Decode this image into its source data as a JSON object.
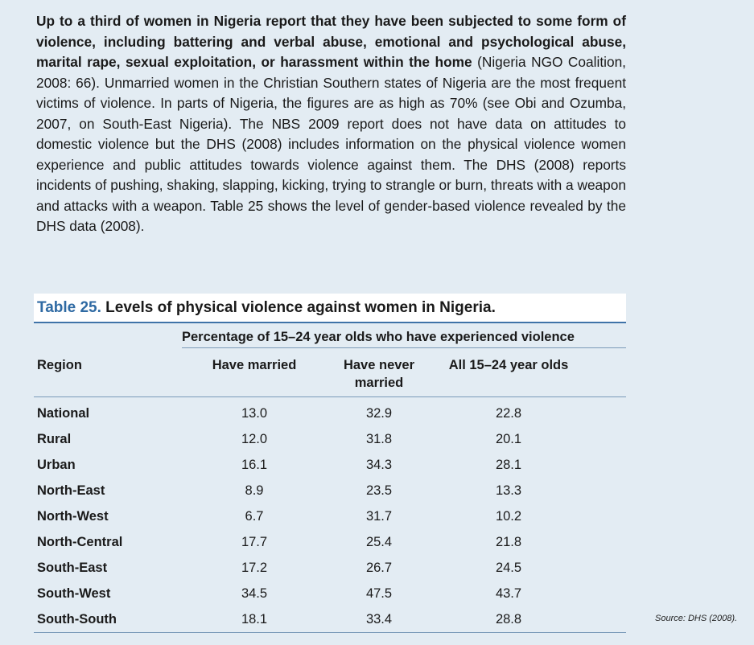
{
  "intro": {
    "bold_text": "Up to a third of women in Nigeria report that they have been subjected to some form of violence, including battering and verbal abuse, emotional and psychological abuse, marital rape, sexual exploitation, or harassment within the home",
    "rest_text": " (Nigeria NGO Coalition, 2008: 66). Unmarried women in the Christian Southern states of Nigeria are the most frequent victims of violence. In parts of Nigeria, the figures are as high as 70% (see Obi and Ozumba, 2007, on South-East Nigeria). The NBS 2009 report does not have data on attitudes to domestic violence but the DHS (2008) includes information on the physical violence women experience and public attitudes towards violence against them. The DHS (2008) reports incidents of pushing, shaking, slapping, kicking, trying to strangle or burn, threats with a weapon and attacks with a weapon. Table 25 shows the level of gender-based violence revealed by the DHS data (2008)."
  },
  "table": {
    "title_number": "Table 25.",
    "title_text": " Levels of physical violence against women in Nigeria.",
    "group_header": "Percentage of 15–24 year olds who have experienced violence",
    "columns": {
      "region": "Region",
      "married": "Have married",
      "never_married": "Have never married",
      "all": "All 15–24 year olds"
    },
    "rows": [
      {
        "region": "National",
        "married": "13.0",
        "never_married": "32.9",
        "all": "22.8"
      },
      {
        "region": "Rural",
        "married": "12.0",
        "never_married": "31.8",
        "all": "20.1"
      },
      {
        "region": "Urban",
        "married": "16.1",
        "never_married": "34.3",
        "all": "28.1"
      },
      {
        "region": "North-East",
        "married": "8.9",
        "never_married": "23.5",
        "all": "13.3"
      },
      {
        "region": "North-West",
        "married": "6.7",
        "never_married": "31.7",
        "all": "10.2"
      },
      {
        "region": "North-Central",
        "married": "17.7",
        "never_married": "25.4",
        "all": "21.8"
      },
      {
        "region": "South-East",
        "married": "17.2",
        "never_married": "26.7",
        "all": "24.5"
      },
      {
        "region": "South-West",
        "married": "34.5",
        "never_married": "47.5",
        "all": "43.7"
      },
      {
        "region": "South-South",
        "married": "18.1",
        "never_married": "33.4",
        "all": "28.8"
      }
    ]
  },
  "source": "Source: DHS (2008)."
}
